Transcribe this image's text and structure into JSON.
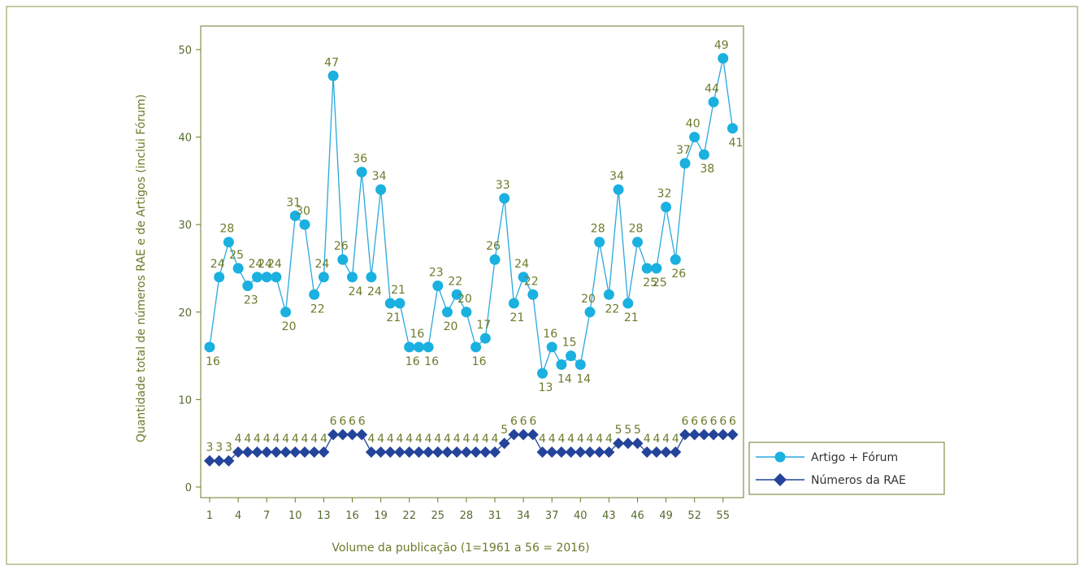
{
  "chart_data": {
    "type": "line",
    "xlabel": "Volume da publicação (1=1961 a 56 = 2016)",
    "ylabel": "Quantidade total de números RAE e de Artigos (inclui Fórum)",
    "xlim": [
      1,
      56
    ],
    "ylim": [
      0,
      50
    ],
    "x_ticks": [
      1,
      4,
      7,
      10,
      13,
      16,
      19,
      22,
      25,
      28,
      31,
      34,
      37,
      40,
      43,
      46,
      49,
      52,
      55
    ],
    "y_ticks": [
      0,
      10,
      20,
      30,
      40,
      50
    ],
    "grid": false,
    "legend_position": "bottom-right",
    "series": [
      {
        "name": "Artigo + Fórum",
        "marker": "circle",
        "values": [
          16,
          24,
          28,
          25,
          23,
          24,
          24,
          24,
          20,
          31,
          30,
          22,
          24,
          47,
          26,
          24,
          36,
          24,
          34,
          21,
          21,
          16,
          16,
          16,
          23,
          20,
          22,
          20,
          16,
          17,
          26,
          33,
          21,
          24,
          22,
          13,
          16,
          14,
          15,
          14,
          20,
          28,
          22,
          34,
          21,
          28,
          25,
          25,
          32,
          26,
          37,
          40,
          38,
          44,
          49,
          41
        ]
      },
      {
        "name": "Números da RAE",
        "marker": "diamond",
        "values": [
          3,
          3,
          3,
          4,
          4,
          4,
          4,
          4,
          4,
          4,
          4,
          4,
          4,
          6,
          6,
          6,
          6,
          4,
          4,
          4,
          4,
          4,
          4,
          4,
          4,
          4,
          4,
          4,
          4,
          4,
          4,
          5,
          6,
          6,
          6,
          4,
          4,
          4,
          4,
          4,
          4,
          4,
          4,
          5,
          5,
          5,
          4,
          4,
          4,
          4,
          6,
          6,
          6,
          6,
          6,
          6
        ]
      }
    ]
  },
  "colors": {
    "series_artigo": "#1ab0e0",
    "series_artigo_line": "#2aa8dc",
    "series_rae": "#24449a",
    "axis": "#6b7b2a",
    "border": "#8a9a4a"
  }
}
